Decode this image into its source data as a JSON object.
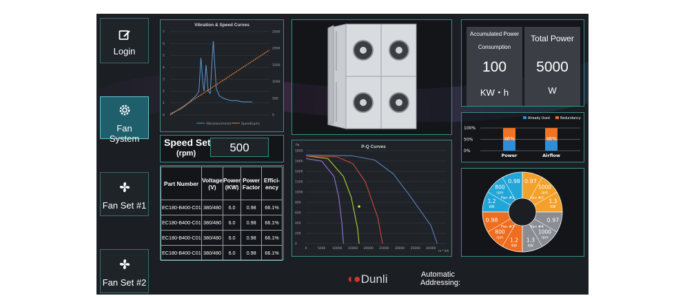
{
  "nav": {
    "login": "Login",
    "fan_system": "Fan System",
    "fan_set_1": "Fan Set #1",
    "fan_set_2": "Fan Set #2"
  },
  "vibration_chart": {
    "title": "Vibration & Speed Curves",
    "left_ticks": [
      "7",
      "6",
      "5",
      "4",
      "3",
      "2",
      "1",
      "0"
    ],
    "right_ticks": [
      "2500",
      "2000",
      "1500",
      "1000",
      "500",
      "0"
    ],
    "legend": [
      "Vibration(mm/s)",
      "Speed(rpm)"
    ]
  },
  "speed_set": {
    "label_line1": "Speed Set",
    "label_line2": "(rpm)",
    "value": "500"
  },
  "spec_table": {
    "headers": [
      {
        "l1": "Part Number",
        "l2": ""
      },
      {
        "l1": "Voltage",
        "l2": "(V)"
      },
      {
        "l1": "Power",
        "l2": "(KW)"
      },
      {
        "l1": "Power",
        "l2": "Factor"
      },
      {
        "l1": "Effici-",
        "l2": "ency"
      }
    ],
    "rows": [
      [
        "EC180-B400-C01",
        "380/480",
        "6.0",
        "0.98",
        "66.1%"
      ],
      [
        "EC180-B400-C01",
        "380/480",
        "6.0",
        "0.98",
        "66.1%"
      ],
      [
        "EC180-B400-C01",
        "380/480",
        "6.0",
        "0.98",
        "66.1%"
      ],
      [
        "EC180-B400-C01",
        "380/480",
        "6.0",
        "0.98",
        "66.1%"
      ]
    ]
  },
  "pq_chart": {
    "title": "P-Q Curves",
    "yunit": "Pa",
    "xunit": "m^3/h",
    "yticks": [
      "1800",
      "1600",
      "1400",
      "1200",
      "1000",
      "800",
      "600",
      "400",
      "200",
      "0"
    ],
    "xticks": [
      "0",
      "5000",
      "10000",
      "15000",
      "20000",
      "25000",
      "30000",
      "35000",
      "40000"
    ]
  },
  "power": {
    "accum_label_1": "Accumulated Power",
    "accum_label_2": "Consumption",
    "accum_value": "100",
    "accum_unit": "KW・h",
    "total_label": "Total Power",
    "total_value": "5000",
    "total_unit": "W"
  },
  "usage_chart": {
    "legend_used": "Already Used",
    "legend_redundancy": "Redundancy",
    "yticks": [
      "100%",
      "50%",
      "0%"
    ],
    "categories": [
      "Power",
      "Airflow"
    ],
    "labels": [
      "46%",
      "46%"
    ]
  },
  "chart_data": [
    {
      "type": "line",
      "title": "Vibration & Speed Curves",
      "series": [
        {
          "name": "Vibration(mm/s)",
          "axis": "left",
          "x": [
            0,
            5,
            10,
            15,
            20,
            25,
            28,
            30,
            32,
            33,
            35,
            37,
            39,
            42,
            45,
            48,
            52,
            55,
            60,
            65,
            70,
            75,
            80
          ],
          "values": [
            0.1,
            0.3,
            0.5,
            0.8,
            1.2,
            1.6,
            2.0,
            4.8,
            2.5,
            2.0,
            4.2,
            2.0,
            1.8,
            6.2,
            2.2,
            1.6,
            1.4,
            1.3,
            1.2,
            1.2,
            1.1,
            1.1,
            1.1
          ]
        },
        {
          "name": "Speed(rpm)",
          "axis": "right",
          "x": [
            0,
            80
          ],
          "values": [
            0,
            1950
          ]
        }
      ],
      "ylim_left": [
        0,
        7
      ],
      "ylim_right": [
        0,
        2500
      ],
      "colors": [
        "#5b9bd5",
        "#ed7d31"
      ]
    },
    {
      "type": "line",
      "title": "P-Q Curves",
      "xlim": [
        0,
        45000
      ],
      "ylim": [
        0,
        1800
      ],
      "series": [
        {
          "color": "#9b74d6",
          "x": [
            0,
            5000,
            9000,
            10500,
            11500,
            12000
          ],
          "values": [
            1650,
            1600,
            1300,
            900,
            400,
            0
          ]
        },
        {
          "color": "#b5d334",
          "x": [
            0,
            7000,
            12000,
            14500,
            16500,
            17000
          ],
          "values": [
            1700,
            1650,
            1300,
            900,
            300,
            0
          ]
        },
        {
          "color": "#d9453b",
          "x": [
            0,
            10000,
            15000,
            19000,
            23000,
            24500
          ],
          "values": [
            1700,
            1680,
            1550,
            1200,
            500,
            0
          ]
        },
        {
          "color": "#5b7fc4",
          "x": [
            0,
            15000,
            22000,
            28000,
            33000,
            40000,
            42000
          ],
          "values": [
            1720,
            1700,
            1620,
            1350,
            950,
            350,
            0
          ]
        }
      ],
      "points": [
        {
          "x": 17000,
          "y": 720,
          "color": "#e6d63c"
        }
      ]
    },
    {
      "type": "bar",
      "categories": [
        "Power",
        "Airflow"
      ],
      "series": [
        {
          "name": "Already Used",
          "values": [
            46,
            46
          ],
          "color": "#2d8fd9"
        },
        {
          "name": "Redundancy",
          "values": [
            54,
            54
          ],
          "color": "#ef7424"
        }
      ],
      "ylim": [
        0,
        100
      ]
    },
    {
      "type": "pie",
      "segments": [
        {
          "label": "Fan #1",
          "values": [
            "1.2 KW",
            "800 rpm",
            "0.98"
          ],
          "color": "#22a6d8"
        },
        {
          "label": "Fan #2",
          "values": [
            "0.97",
            "1000 rpm",
            "1.3 KW"
          ],
          "color": "#f3a12a"
        },
        {
          "label": "Fan #3",
          "values": [
            "1.2 KW",
            "800 rpm",
            "0.98"
          ],
          "color": "#ef6d1e"
        },
        {
          "label": "Fan #4",
          "values": [
            "0.97",
            "1000 rpm",
            "1.3 KW"
          ],
          "color": "#8a8d93"
        }
      ]
    }
  ],
  "footer": {
    "logo_text": "Dunli",
    "auto_label_1": "Automatic",
    "auto_label_2": "Addressing:"
  }
}
